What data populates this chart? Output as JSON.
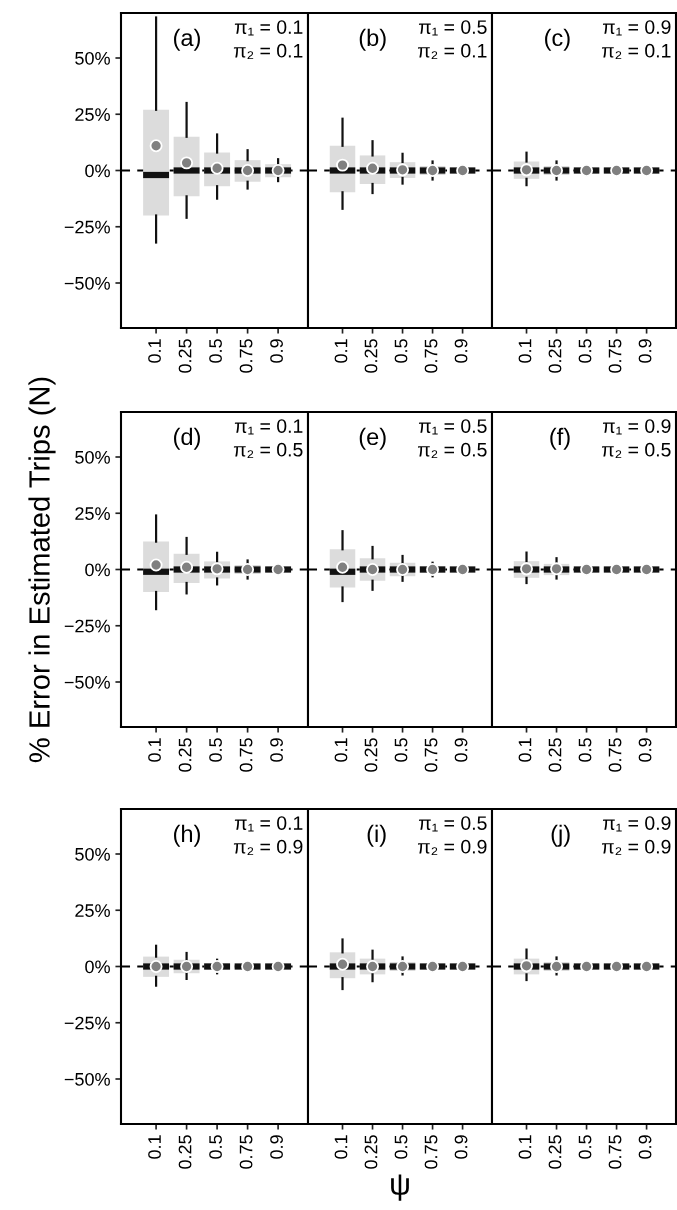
{
  "chart_data": [
    {
      "type": "box",
      "title": "(a)",
      "annotations": [
        "π₁ = 0.1",
        "π₂ = 0.1"
      ],
      "categories": [
        "0.1",
        "0.25",
        "0.5",
        "0.75",
        "0.9"
      ],
      "ylim": [
        -70,
        70
      ],
      "yticks": [
        {
          "value": -50,
          "label": "−50%"
        },
        {
          "value": -25,
          "label": "−25%"
        },
        {
          "value": 0,
          "label": "0%"
        },
        {
          "value": 25,
          "label": "25%"
        },
        {
          "value": 50,
          "label": "50%"
        }
      ],
      "ref_lines": [
        {
          "axis": "y",
          "value": 0,
          "line_style": "dashed",
          "color": "#000000"
        }
      ],
      "series": [
        {
          "color": "#dcdcdc",
          "boxes": [
            {
              "low": -32,
              "q1": -20,
              "median": -2,
              "q3": 27,
              "high": 68,
              "mean": 11
            },
            {
              "low": -21,
              "q1": -11.5,
              "median": 0,
              "q3": 15,
              "high": 30,
              "mean": 3.4
            },
            {
              "low": -12.5,
              "q1": -7,
              "median": 0,
              "q3": 8,
              "high": 16,
              "mean": 1
            },
            {
              "low": -8,
              "q1": -5,
              "median": 0,
              "q3": 4.6,
              "high": 9,
              "mean": 0
            },
            {
              "low": -4.7,
              "q1": -3,
              "median": 0,
              "q3": 2.8,
              "high": 5,
              "mean": 0
            }
          ]
        }
      ]
    },
    {
      "type": "box",
      "title": "(b)",
      "annotations": [
        "π₁ = 0.5",
        "π₂ = 0.1"
      ],
      "categories": [
        "0.1",
        "0.25",
        "0.5",
        "0.75",
        "0.9"
      ],
      "ylim": [
        -70,
        70
      ],
      "tick_labels": "x",
      "ref_lines": [
        {
          "axis": "y",
          "value": 0,
          "line_style": "dashed",
          "color": "#000000"
        }
      ],
      "series": [
        {
          "color": "#dcdcdc",
          "boxes": [
            {
              "low": -17,
              "q1": -9.7,
              "median": 0,
              "q3": 11,
              "high": 23,
              "mean": 2.4
            },
            {
              "low": -10,
              "q1": -6,
              "median": 0,
              "q3": 6.7,
              "high": 13,
              "mean": 1
            },
            {
              "low": -5.8,
              "q1": -3.3,
              "median": 0,
              "q3": 3.7,
              "high": 7.4,
              "mean": 0.3
            },
            {
              "low": -4,
              "q1": -2,
              "median": 0,
              "q3": 2,
              "high": 4,
              "mean": 0
            },
            {
              "low": -2,
              "q1": -1,
              "median": 0,
              "q3": 1,
              "high": 2,
              "mean": 0
            }
          ]
        }
      ]
    },
    {
      "type": "box",
      "title": "(c)",
      "annotations": [
        "π₁ = 0.9",
        "π₂ = 0.1"
      ],
      "categories": [
        "0.1",
        "0.25",
        "0.5",
        "0.75",
        "0.9"
      ],
      "ylim": [
        -70,
        70
      ],
      "tick_labels": "x",
      "ref_lines": [
        {
          "axis": "y",
          "value": 0,
          "line_style": "dashed",
          "color": "#000000"
        }
      ],
      "series": [
        {
          "color": "#dcdcdc",
          "boxes": [
            {
              "low": -6.5,
              "q1": -3.7,
              "median": 0,
              "q3": 4,
              "high": 7.9,
              "mean": 0.3
            },
            {
              "low": -4,
              "q1": -2,
              "median": 0,
              "q3": 2,
              "high": 4,
              "mean": 0
            },
            {
              "low": -2,
              "q1": -1,
              "median": 0,
              "q3": 1,
              "high": 2,
              "mean": 0
            },
            {
              "low": -1.5,
              "q1": -0.8,
              "median": 0,
              "q3": 0.8,
              "high": 1.5,
              "mean": 0
            },
            {
              "low": -1,
              "q1": -0.5,
              "median": 0,
              "q3": 0.5,
              "high": 1,
              "mean": 0
            }
          ]
        }
      ]
    },
    {
      "type": "box",
      "title": "(d)",
      "annotations": [
        "π₁ = 0.1",
        "π₂ = 0.5"
      ],
      "ylabel": "% Error in Estimated Trips (N)",
      "categories": [
        "0.1",
        "0.25",
        "0.5",
        "0.75",
        "0.9"
      ],
      "ylim": [
        -70,
        70
      ],
      "yticks": [
        {
          "value": -50,
          "label": "−50%"
        },
        {
          "value": -25,
          "label": "−25%"
        },
        {
          "value": 0,
          "label": "0%"
        },
        {
          "value": 25,
          "label": "25%"
        },
        {
          "value": 50,
          "label": "50%"
        }
      ],
      "ref_lines": [
        {
          "axis": "y",
          "value": 0,
          "line_style": "dashed",
          "color": "#000000"
        }
      ],
      "series": [
        {
          "color": "#dcdcdc",
          "boxes": [
            {
              "low": -17.6,
              "q1": -10,
              "median": -1,
              "q3": 12.4,
              "high": 24,
              "mean": 2
            },
            {
              "low": -10.6,
              "q1": -6,
              "median": 0,
              "q3": 7,
              "high": 14,
              "mean": 1
            },
            {
              "low": -6.6,
              "q1": -4,
              "median": 0,
              "q3": 3.6,
              "high": 7.4,
              "mean": 0.3
            },
            {
              "low": -4,
              "q1": -2,
              "median": 0,
              "q3": 2,
              "high": 4,
              "mean": 0
            },
            {
              "low": -2,
              "q1": -1,
              "median": 0,
              "q3": 1,
              "high": 2,
              "mean": 0
            }
          ]
        }
      ]
    },
    {
      "type": "box",
      "title": "(e)",
      "annotations": [
        "π₁ = 0.5",
        "π₂ = 0.5"
      ],
      "categories": [
        "0.1",
        "0.25",
        "0.5",
        "0.75",
        "0.9"
      ],
      "ylim": [
        -70,
        70
      ],
      "tick_labels": "x",
      "ref_lines": [
        {
          "axis": "y",
          "value": 0,
          "line_style": "dashed",
          "color": "#000000"
        }
      ],
      "series": [
        {
          "color": "#dcdcdc",
          "boxes": [
            {
              "low": -14,
              "q1": -8,
              "median": -1,
              "q3": 9,
              "high": 17,
              "mean": 1
            },
            {
              "low": -9,
              "q1": -5,
              "median": 0,
              "q3": 5,
              "high": 10,
              "mean": 0
            },
            {
              "low": -5,
              "q1": -3,
              "median": 0,
              "q3": 3,
              "high": 6,
              "mean": 0
            },
            {
              "low": -3,
              "q1": -1.5,
              "median": 0,
              "q3": 1.5,
              "high": 3,
              "mean": 0
            },
            {
              "low": -1.5,
              "q1": -0.8,
              "median": 0,
              "q3": 0.8,
              "high": 1.5,
              "mean": 0
            }
          ]
        }
      ]
    },
    {
      "type": "box",
      "title": "(f)",
      "annotations": [
        "π₁ = 0.9",
        "π₂ = 0.5"
      ],
      "categories": [
        "0.1",
        "0.25",
        "0.5",
        "0.75",
        "0.9"
      ],
      "ylim": [
        -70,
        70
      ],
      "tick_labels": "x",
      "ref_lines": [
        {
          "axis": "y",
          "value": 0,
          "line_style": "dashed",
          "color": "#000000"
        }
      ],
      "series": [
        {
          "color": "#dcdcdc",
          "boxes": [
            {
              "low": -6,
              "q1": -3.7,
              "median": 0,
              "q3": 3.7,
              "high": 7.5,
              "mean": 0.3
            },
            {
              "low": -4,
              "q1": -2.5,
              "median": 0,
              "q3": 2.5,
              "high": 5,
              "mean": 0.3
            },
            {
              "low": -2,
              "q1": -1,
              "median": 0,
              "q3": 1,
              "high": 2,
              "mean": 0
            },
            {
              "low": -1.5,
              "q1": -0.8,
              "median": 0,
              "q3": 0.8,
              "high": 1.5,
              "mean": 0
            },
            {
              "low": -1,
              "q1": -0.5,
              "median": 0,
              "q3": 0.5,
              "high": 1,
              "mean": 0
            }
          ]
        }
      ]
    },
    {
      "type": "box",
      "title": "(h)",
      "annotations": [
        "π₁ = 0.1",
        "π₂ = 0.9"
      ],
      "categories": [
        "0.1",
        "0.25",
        "0.5",
        "0.75",
        "0.9"
      ],
      "ylim": [
        -70,
        70
      ],
      "yticks": [
        {
          "value": -50,
          "label": "−50%"
        },
        {
          "value": -25,
          "label": "−25%"
        },
        {
          "value": 0,
          "label": "0%"
        },
        {
          "value": 25,
          "label": "25%"
        },
        {
          "value": 50,
          "label": "50%"
        }
      ],
      "ref_lines": [
        {
          "axis": "y",
          "value": 0,
          "line_style": "dashed",
          "color": "#000000"
        }
      ],
      "series": [
        {
          "color": "#dcdcdc",
          "boxes": [
            {
              "low": -8.5,
              "q1": -4.6,
              "median": 0,
              "q3": 4.4,
              "high": 9.2,
              "mean": 0
            },
            {
              "low": -5.5,
              "q1": -3,
              "median": 0,
              "q3": 3,
              "high": 6,
              "mean": 0
            },
            {
              "low": -3,
              "q1": -1.5,
              "median": 0,
              "q3": 1.5,
              "high": 3,
              "mean": 0
            },
            {
              "low": -1.5,
              "q1": -0.8,
              "median": 0,
              "q3": 0.8,
              "high": 1.5,
              "mean": 0
            },
            {
              "low": -1,
              "q1": -0.6,
              "median": 0,
              "q3": 0.6,
              "high": 1,
              "mean": 0
            }
          ]
        }
      ]
    },
    {
      "type": "box",
      "title": "(i)",
      "annotations": [
        "π₁ = 0.5",
        "π₂ = 0.9"
      ],
      "xlabel": "ψ",
      "categories": [
        "0.1",
        "0.25",
        "0.5",
        "0.75",
        "0.9"
      ],
      "ylim": [
        -70,
        70
      ],
      "tick_labels": "x",
      "ref_lines": [
        {
          "axis": "y",
          "value": 0,
          "line_style": "dashed",
          "color": "#000000"
        }
      ],
      "series": [
        {
          "color": "#dcdcdc",
          "boxes": [
            {
              "low": -10,
              "q1": -5.2,
              "median": 0,
              "q3": 6.3,
              "high": 12,
              "mean": 1
            },
            {
              "low": -6.5,
              "q1": -3.5,
              "median": 0,
              "q3": 3.5,
              "high": 7,
              "mean": 0
            },
            {
              "low": -3.5,
              "q1": -2,
              "median": 0,
              "q3": 2,
              "high": 4,
              "mean": 0
            },
            {
              "low": -2,
              "q1": -1,
              "median": 0,
              "q3": 1,
              "high": 2,
              "mean": 0
            },
            {
              "low": -1,
              "q1": -0.6,
              "median": 0,
              "q3": 0.6,
              "high": 1,
              "mean": 0
            }
          ]
        }
      ]
    },
    {
      "type": "box",
      "title": "(j)",
      "annotations": [
        "π₁ = 0.9",
        "π₂ = 0.9"
      ],
      "categories": [
        "0.1",
        "0.25",
        "0.5",
        "0.75",
        "0.9"
      ],
      "ylim": [
        -70,
        70
      ],
      "tick_labels": "x",
      "ref_lines": [
        {
          "axis": "y",
          "value": 0,
          "line_style": "dashed",
          "color": "#000000"
        }
      ],
      "series": [
        {
          "color": "#dcdcdc",
          "boxes": [
            {
              "low": -6,
              "q1": -3.5,
              "median": 0,
              "q3": 3.5,
              "high": 7.5,
              "mean": 0.3
            },
            {
              "low": -3.5,
              "q1": -2,
              "median": 0,
              "q3": 2,
              "high": 4,
              "mean": 0
            },
            {
              "low": -1.5,
              "q1": -0.8,
              "median": 0,
              "q3": 0.8,
              "high": 1.5,
              "mean": 0
            },
            {
              "low": -1.5,
              "q1": -0.8,
              "median": 0,
              "q3": 0.8,
              "high": 1.5,
              "mean": 0
            },
            {
              "low": -1,
              "q1": -0.5,
              "median": 0,
              "q3": 0.5,
              "high": 1,
              "mean": 0
            }
          ]
        }
      ]
    }
  ]
}
